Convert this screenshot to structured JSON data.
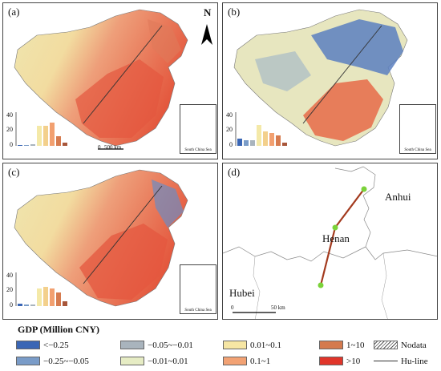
{
  "panels": {
    "a": {
      "label": "(a)",
      "compass": "N",
      "scale_label": "500 km",
      "scale_zero": "0",
      "inset_caption": "South China Sea",
      "chart_data": {
        "type": "bar",
        "ylim": [
          0,
          40
        ],
        "yticks": [
          "0",
          "20",
          "40"
        ],
        "values": [
          1,
          1,
          2,
          25,
          25,
          29,
          12,
          4
        ],
        "colors": [
          "#3a66b5",
          "#7a9cc8",
          "#a9b4bd",
          "#f4e9a8",
          "#f3d08c",
          "#f2a070",
          "#d67b4f",
          "#a8563a"
        ]
      }
    },
    "b": {
      "label": "(b)",
      "inset_caption": "South China Sea",
      "chart_data": {
        "type": "bar",
        "ylim": [
          0,
          40
        ],
        "yticks": [
          "0",
          "20",
          "40"
        ],
        "values": [
          9,
          7,
          7,
          26,
          18,
          16,
          13,
          4
        ],
        "colors": [
          "#3a66b5",
          "#7a9cc8",
          "#a9b4bd",
          "#f4e9a8",
          "#f3d08c",
          "#f2a070",
          "#d67b4f",
          "#a8563a"
        ]
      }
    },
    "c": {
      "label": "(c)",
      "inset_caption": "South China Sea",
      "chart_data": {
        "type": "bar",
        "ylim": [
          0,
          40
        ],
        "yticks": [
          "0",
          "20",
          "40"
        ],
        "values": [
          3,
          2,
          2,
          22,
          24,
          22,
          17,
          6
        ],
        "colors": [
          "#3a66b5",
          "#7a9cc8",
          "#a9b4bd",
          "#f4e9a8",
          "#f3d08c",
          "#f2a070",
          "#d67b4f",
          "#a8563a"
        ]
      }
    },
    "d": {
      "label": "(d)",
      "regions": {
        "anhui": "Anhui",
        "henan": "Henan",
        "hubei": "Hubei"
      },
      "scale_zero": "0",
      "scale_label": "50 km"
    }
  },
  "legend": {
    "title": "GDP (Million CNY)",
    "items": [
      {
        "label": "<−0.25",
        "color": "#3a66b5"
      },
      {
        "label": "−0.25~−0.05",
        "color": "#7a9cc8"
      },
      {
        "label": "−0.05~−0.01",
        "color": "#a9b4bd"
      },
      {
        "label": "−0.01~0.01",
        "color": "#e6ecc4"
      },
      {
        "label": "0.01~0.1",
        "color": "#f6e6a4"
      },
      {
        "label": "0.1~1",
        "color": "#f2a274"
      },
      {
        "label": "1~10",
        "color": "#d47a4e"
      },
      {
        "label": ">10",
        "color": "#e0352a"
      },
      {
        "label": "Nodata",
        "color": "hatch"
      },
      {
        "label": "Hu-line",
        "color": "line"
      }
    ]
  }
}
